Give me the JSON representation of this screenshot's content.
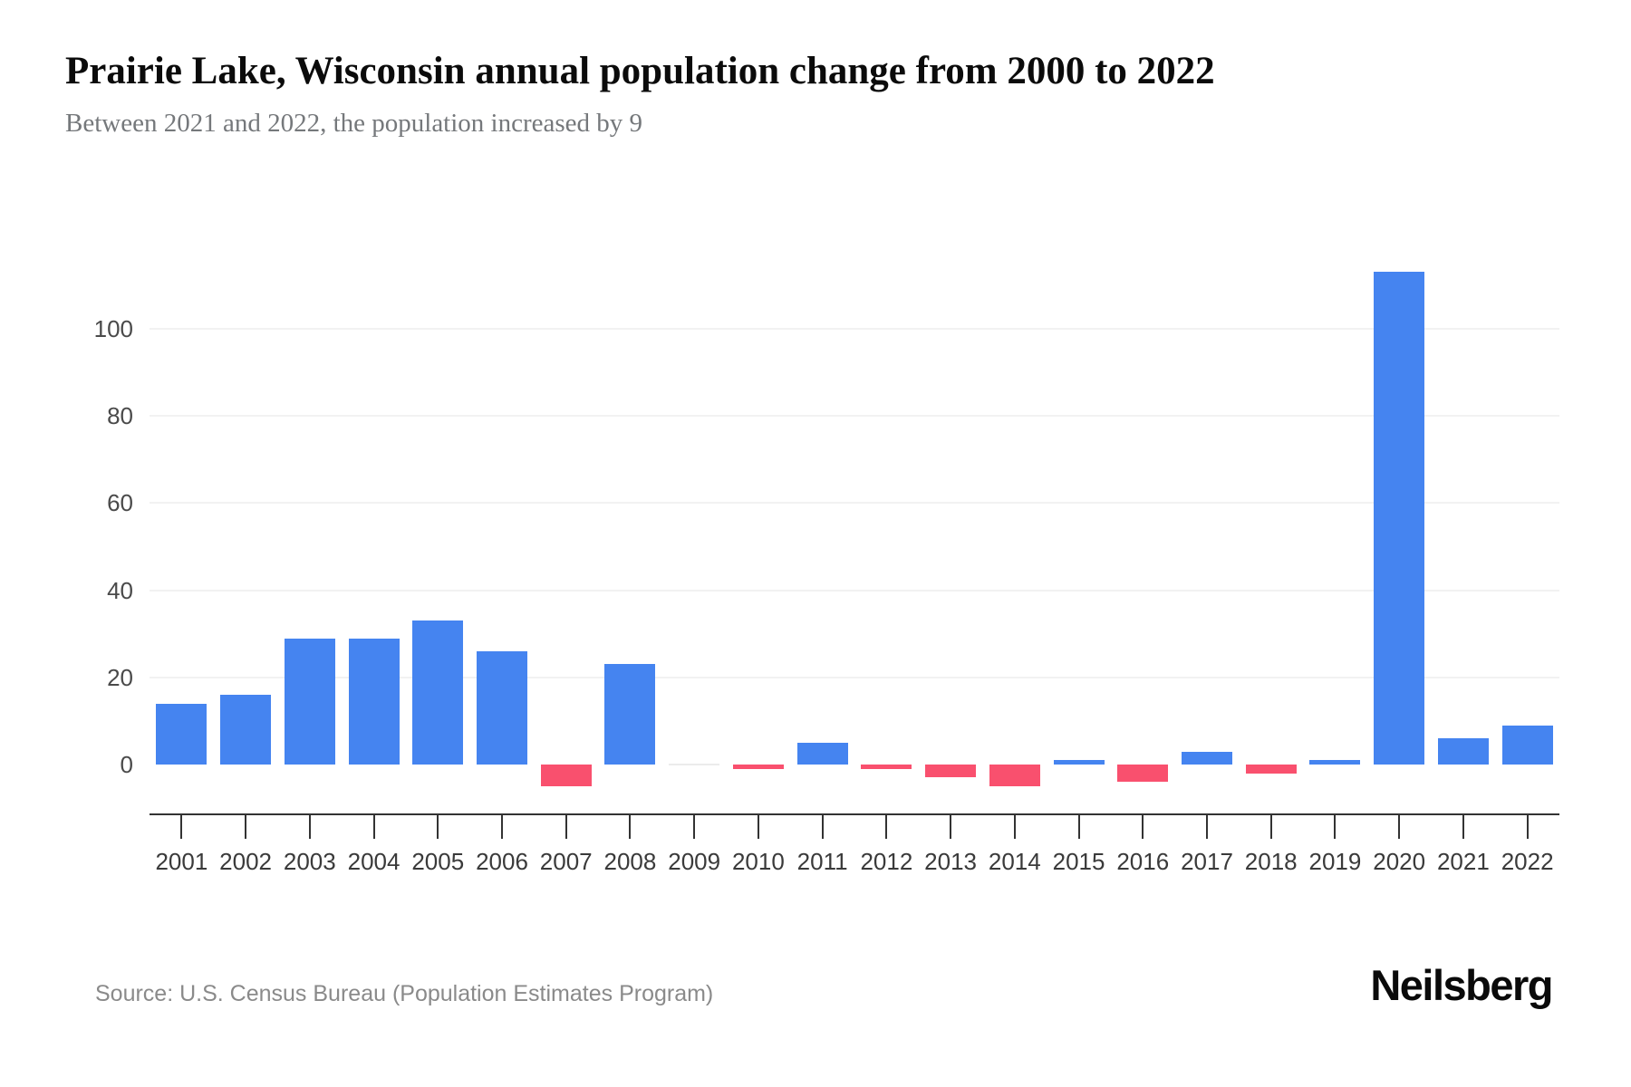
{
  "header": {
    "title": "Prairie Lake, Wisconsin annual population change from 2000 to 2022",
    "subtitle": "Between 2021 and 2022, the population increased by 9"
  },
  "chart_data": {
    "type": "bar",
    "title": "Prairie Lake, Wisconsin annual population change from 2000 to 2022",
    "subtitle": "Between 2021 and 2022, the population increased by 9",
    "categories": [
      "2001",
      "2002",
      "2003",
      "2004",
      "2005",
      "2006",
      "2007",
      "2008",
      "2009",
      "2010",
      "2011",
      "2012",
      "2013",
      "2014",
      "2015",
      "2016",
      "2017",
      "2018",
      "2019",
      "2020",
      "2021",
      "2022"
    ],
    "values": [
      14,
      16,
      29,
      29,
      33,
      26,
      -5,
      23,
      0,
      -1,
      5,
      -1,
      -3,
      -5,
      1,
      -4,
      3,
      -2,
      1,
      113,
      6,
      9
    ],
    "xlabel": "",
    "ylabel": "",
    "y_ticks": [
      0,
      20,
      40,
      60,
      80,
      100
    ],
    "ylim": [
      -12,
      123
    ],
    "grid": "horizontal",
    "legend_position": "none",
    "colors": {
      "positive_bar": "#4584F0",
      "negative_bar": "#F9506E",
      "zero_bar": "#ececec",
      "gridline": "#f2f2f2",
      "axis_line": "#333333"
    }
  },
  "footer": {
    "source": "Source: U.S. Census Bureau (Population Estimates Program)",
    "brand": "Neilsberg"
  }
}
